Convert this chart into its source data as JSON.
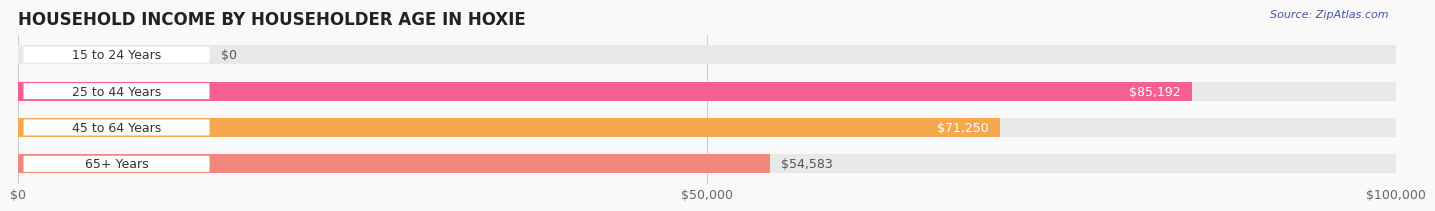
{
  "title": "HOUSEHOLD INCOME BY HOUSEHOLDER AGE IN HOXIE",
  "source": "Source: ZipAtlas.com",
  "categories": [
    "15 to 24 Years",
    "25 to 44 Years",
    "45 to 64 Years",
    "65+ Years"
  ],
  "values": [
    0,
    85192,
    71250,
    54583
  ],
  "bar_colors": [
    "#a8b4e8",
    "#f55f92",
    "#f5a94e",
    "#f0897a"
  ],
  "bar_bg_color": "#e8e8e8",
  "label_colors": [
    "#555555",
    "#ffffff",
    "#ffffff",
    "#555555"
  ],
  "xlim": [
    0,
    100000
  ],
  "xticks": [
    0,
    50000,
    100000
  ],
  "xtick_labels": [
    "$0",
    "$50,000",
    "$100,000"
  ],
  "background_color": "#f9f9f9",
  "title_fontsize": 12,
  "bar_height": 0.52,
  "value_labels": [
    "$0",
    "$85,192",
    "$71,250",
    "$54,583"
  ]
}
